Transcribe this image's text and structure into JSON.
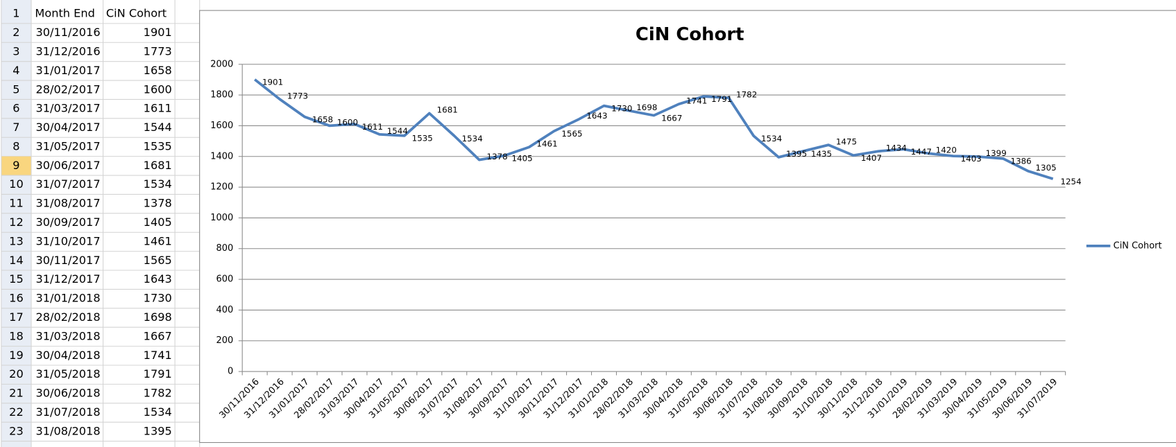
{
  "sheet": {
    "header": "Month End",
    "row_numbers": [
      1,
      2,
      3,
      4,
      5,
      6,
      7,
      8,
      9,
      10,
      11,
      12,
      13,
      14,
      15,
      16,
      17,
      18,
      19,
      20,
      21,
      22,
      23
    ],
    "selected_row": 9,
    "shown_rows": 22
  },
  "chart_data": {
    "type": "line",
    "title": "CiN Cohort",
    "categories": [
      "30/11/2016",
      "31/12/2016",
      "31/01/2017",
      "28/02/2017",
      "31/03/2017",
      "30/04/2017",
      "31/05/2017",
      "30/06/2017",
      "31/07/2017",
      "31/08/2017",
      "30/09/2017",
      "31/10/2017",
      "30/11/2017",
      "31/12/2017",
      "31/01/2018",
      "28/02/2018",
      "31/03/2018",
      "30/04/2018",
      "31/05/2018",
      "30/06/2018",
      "31/07/2018",
      "31/08/2018",
      "30/09/2018",
      "31/10/2018",
      "30/11/2018",
      "31/12/2018",
      "31/01/2019",
      "28/02/2019",
      "31/03/2019",
      "30/04/2019",
      "31/05/2019",
      "30/06/2019",
      "31/07/2019"
    ],
    "series": [
      {
        "name": "CiN Cohort",
        "color": "#4f81bd",
        "values": [
          1901,
          1773,
          1658,
          1600,
          1611,
          1544,
          1535,
          1681,
          1534,
          1378,
          1405,
          1461,
          1565,
          1643,
          1730,
          1698,
          1667,
          1741,
          1791,
          1782,
          1534,
          1395,
          1435,
          1475,
          1407,
          1434,
          1447,
          1420,
          1403,
          1399,
          1386,
          1305,
          1254
        ]
      }
    ],
    "ylim": [
      0,
      2000
    ],
    "yticks": [
      0,
      200,
      400,
      600,
      800,
      1000,
      1200,
      1400,
      1600,
      1800,
      2000
    ],
    "grid": true,
    "legend": "right",
    "data_labels": true
  }
}
